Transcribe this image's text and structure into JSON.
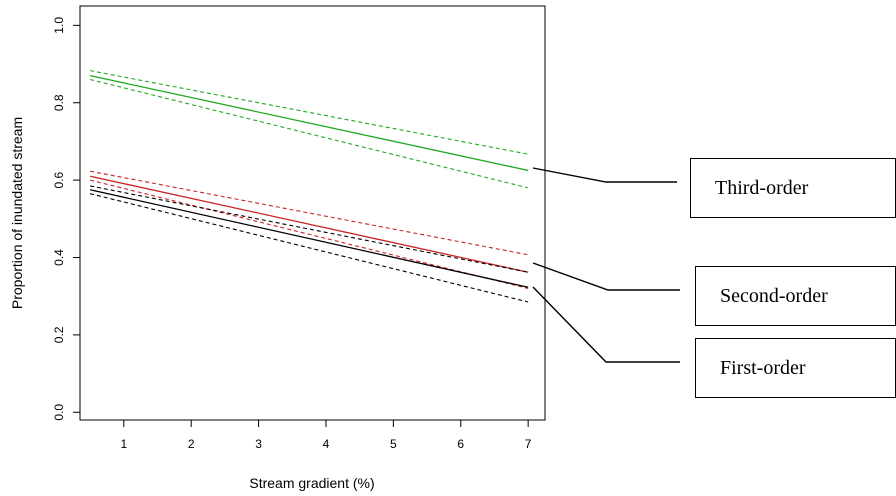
{
  "chart_data": {
    "type": "line",
    "title": "",
    "xlabel": "Stream gradient (%)",
    "ylabel": "Proportion of inundated stream",
    "xlim": [
      0.35,
      7.25
    ],
    "ylim": [
      -0.02,
      1.05
    ],
    "x_ticks": [
      1,
      2,
      3,
      4,
      5,
      6,
      7
    ],
    "y_ticks": [
      0.0,
      0.2,
      0.4,
      0.6,
      0.8,
      1.0
    ],
    "x_tick_labels": [
      "1",
      "2",
      "3",
      "4",
      "5",
      "6",
      "7"
    ],
    "y_tick_labels": [
      "0.0",
      "0.2",
      "0.4",
      "0.6",
      "0.8",
      "1.0"
    ],
    "grid": false,
    "x": [
      0.5,
      7
    ],
    "series": [
      {
        "name": "Third-order",
        "color": "#22aa22",
        "values": [
          0.87,
          0.625
        ],
        "lower": [
          0.86,
          0.58
        ],
        "upper": [
          0.883,
          0.667
        ]
      },
      {
        "name": "Second-order",
        "color": "#cc2222",
        "values": [
          0.61,
          0.362
        ],
        "lower": [
          0.6,
          0.32
        ],
        "upper": [
          0.623,
          0.407
        ]
      },
      {
        "name": "First-order",
        "color": "#000000",
        "values": [
          0.575,
          0.323
        ],
        "lower": [
          0.565,
          0.285
        ],
        "upper": [
          0.585,
          0.362
        ]
      }
    ]
  },
  "callouts": [
    {
      "label": "Third-order"
    },
    {
      "label": "Second-order"
    },
    {
      "label": "First-order"
    }
  ]
}
